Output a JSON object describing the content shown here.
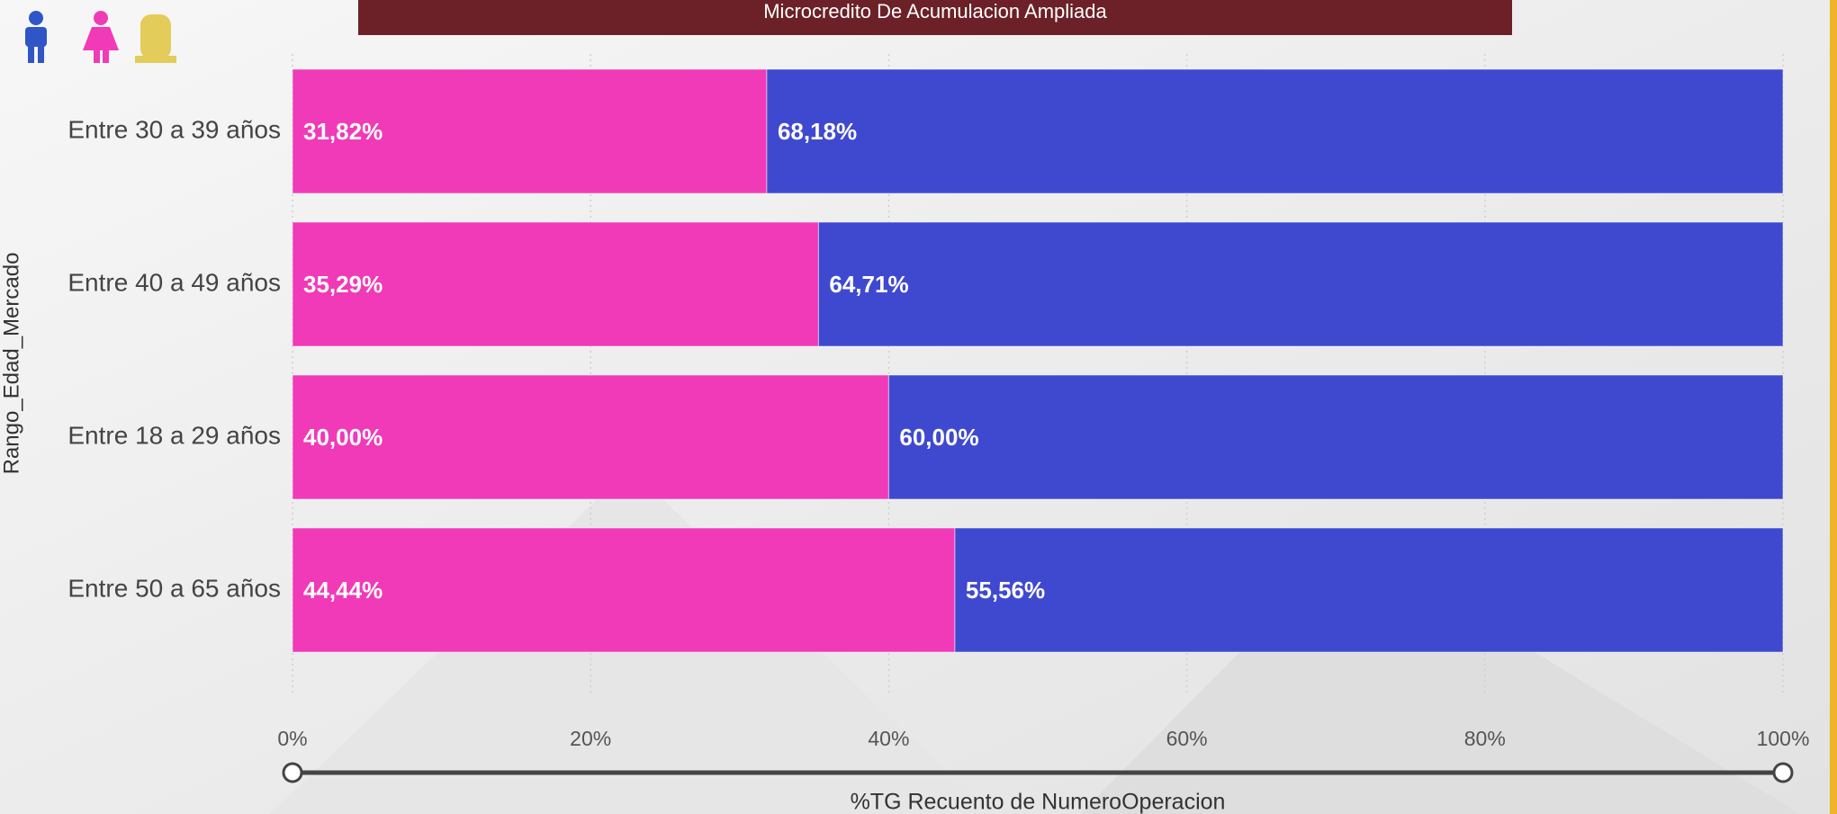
{
  "chart_data": {
    "type": "stacked_barh",
    "title": "Microcredito De Acumulacion Ampliada",
    "y_label": "Rango_Edad_Mercado",
    "x_label": "%TG Recuento de NumeroOperacion",
    "categories": [
      "Entre 30 a 39 años",
      "Entre 40 a 49 años",
      "Entre 18 a 29 años",
      "Entre 50 a 65 años"
    ],
    "series": [
      {
        "color": "#f03ab8",
        "values": [
          31.82,
          35.29,
          40.0,
          44.44
        ],
        "value_labels": [
          "31,82%",
          "35,29%",
          "40,00%",
          "44,44%"
        ]
      },
      {
        "color": "#3f49d0",
        "values": [
          68.18,
          64.71,
          60.0,
          55.56
        ],
        "value_labels": [
          "68,18%",
          "64,71%",
          "60,00%",
          "55,56%"
        ]
      }
    ],
    "xlim": [
      0,
      100
    ],
    "xticks": [
      {
        "value": 0,
        "label": "0%"
      },
      {
        "value": 20,
        "label": "20%"
      },
      {
        "value": 40,
        "label": "40%"
      },
      {
        "value": 60,
        "label": "60%"
      },
      {
        "value": 80,
        "label": "80%"
      },
      {
        "value": 100,
        "label": "100%"
      }
    ],
    "grid": true
  }
}
